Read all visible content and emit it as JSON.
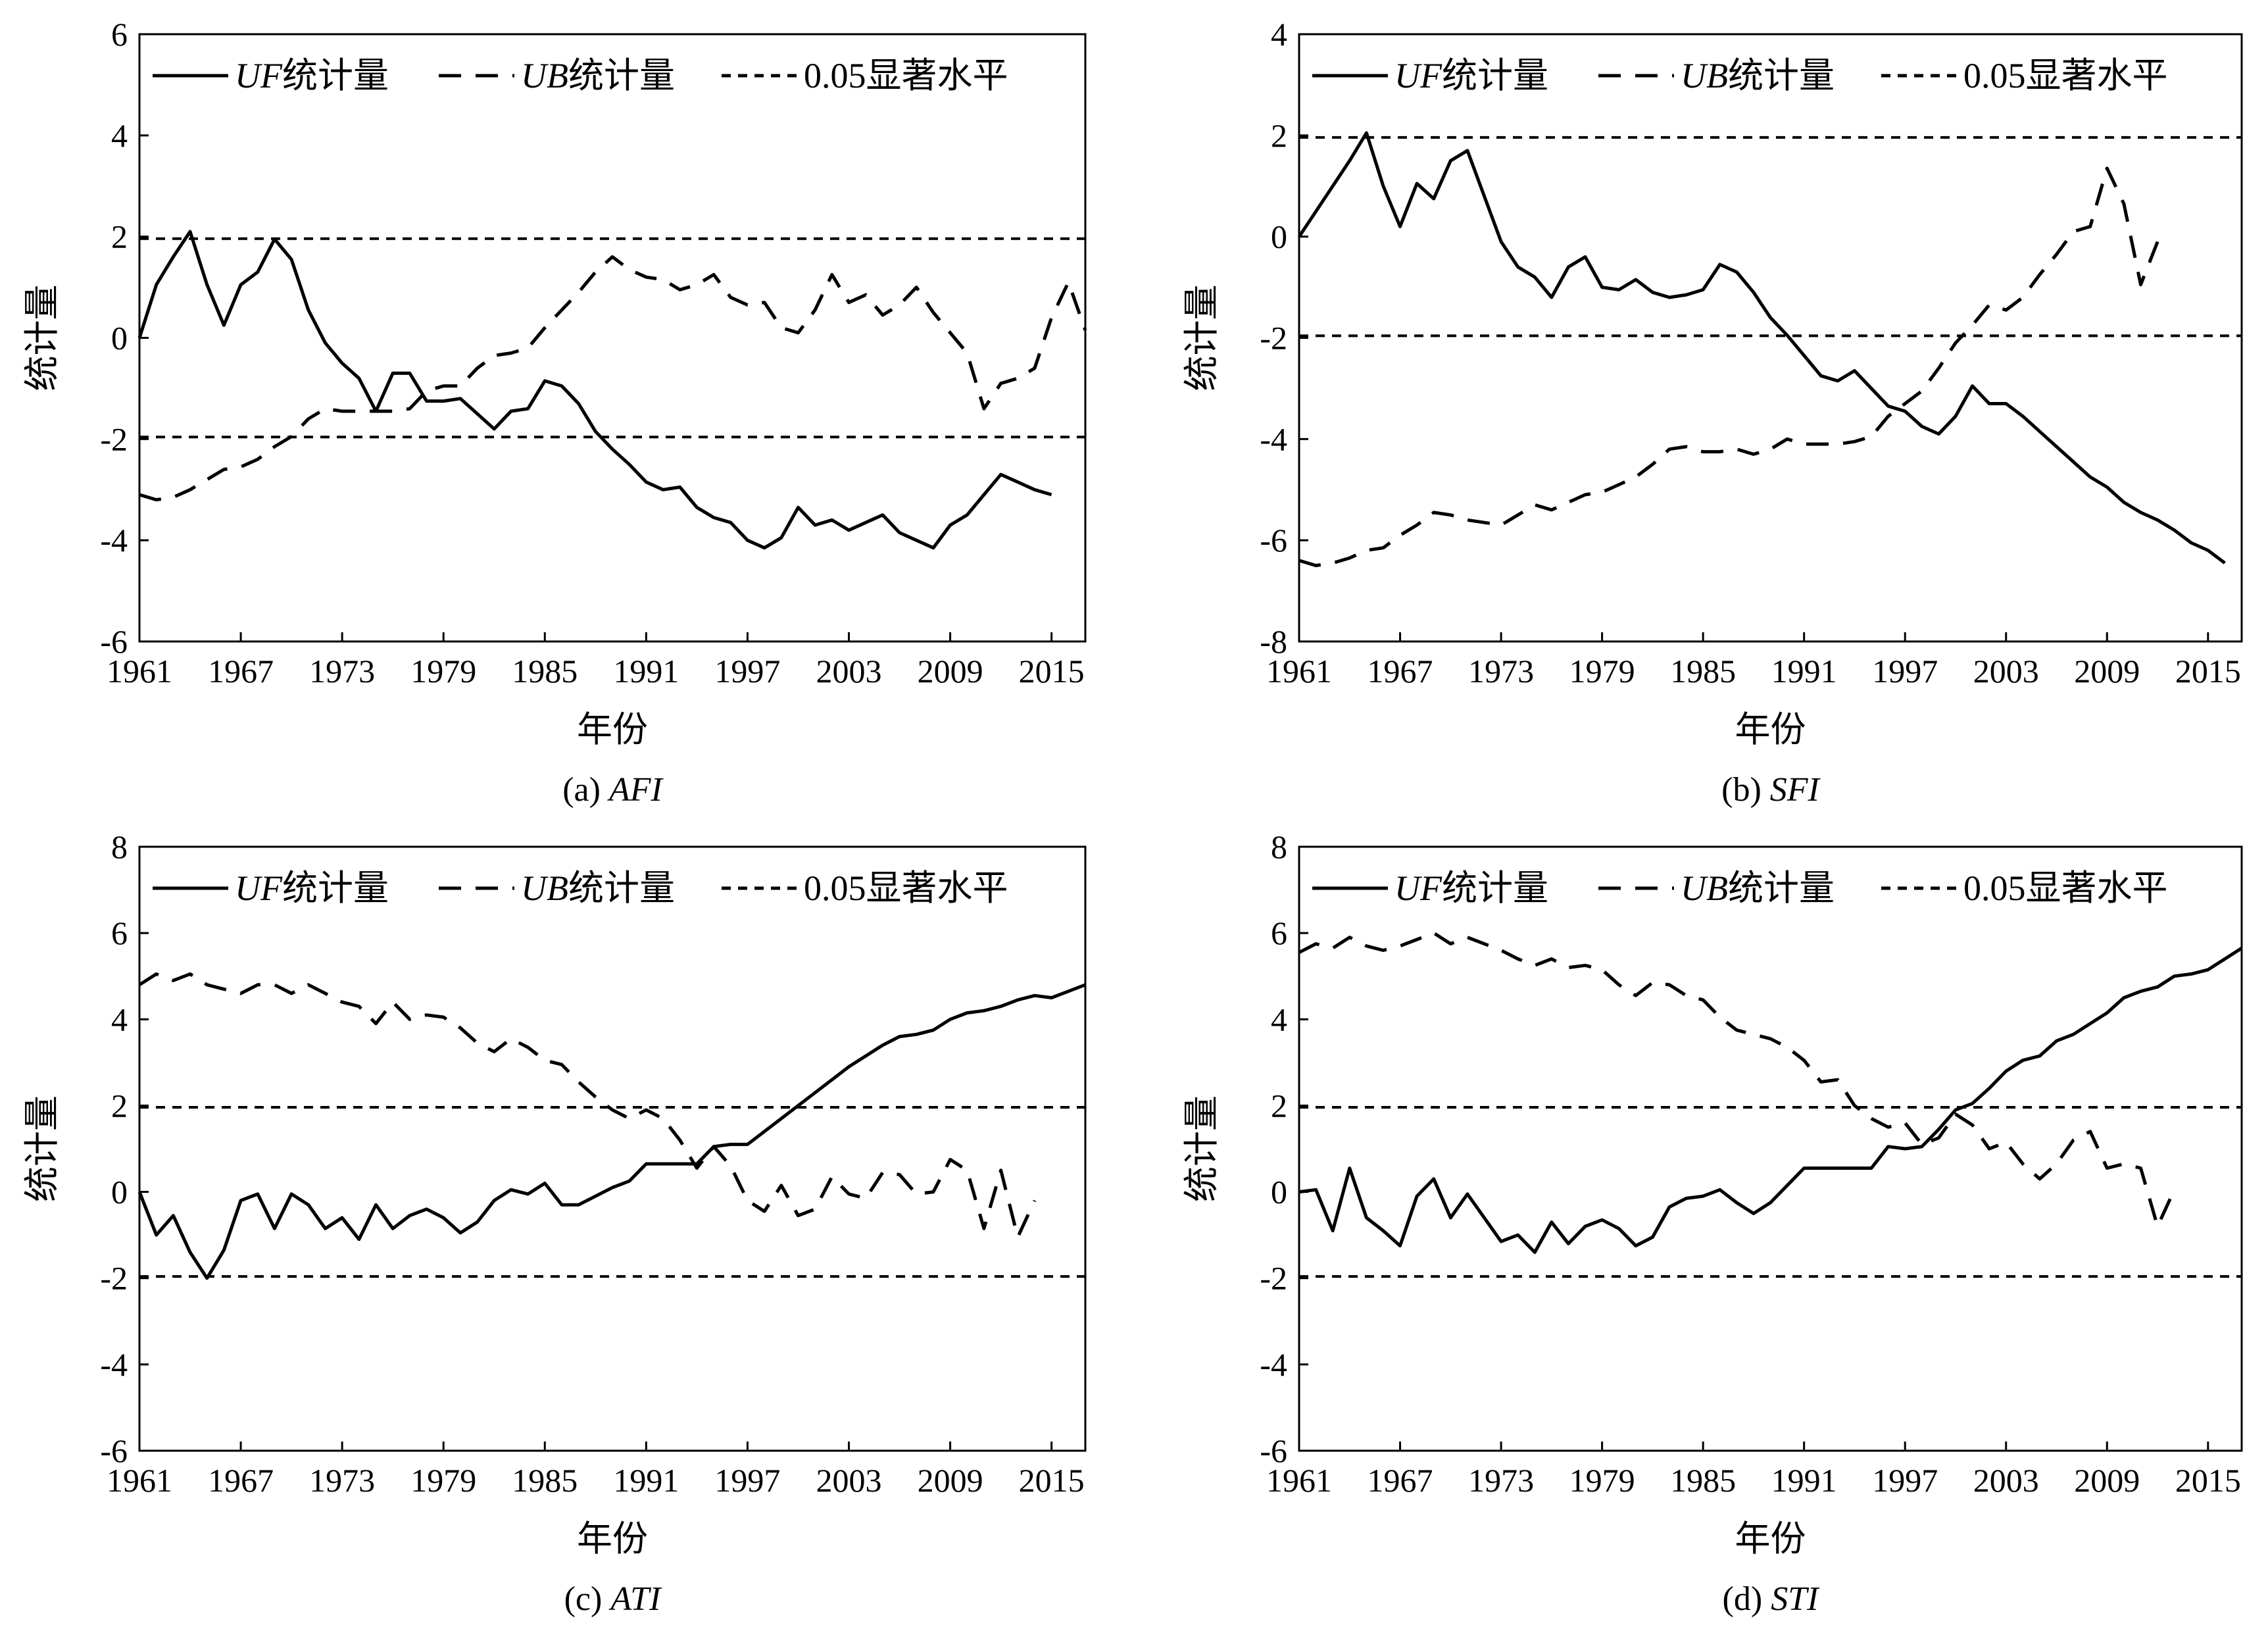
{
  "legend": {
    "uf_prefix": "UF",
    "uf_suffix": "统计量",
    "ub_prefix": "UB",
    "ub_suffix": "统计量",
    "sig_label": "0.05显著水平"
  },
  "chart_data": [
    {
      "panel": "a",
      "type": "line",
      "caption_prefix": "(a) ",
      "caption_index": "AFI",
      "xlabel": "年份",
      "ylabel": "统计量",
      "xlim": [
        1961,
        2017
      ],
      "ylim": [
        -6,
        6
      ],
      "xticks": [
        1961,
        1967,
        1973,
        1979,
        1985,
        1991,
        1997,
        2003,
        2009,
        2015
      ],
      "yticks": [
        -6,
        -4,
        -2,
        0,
        2,
        4,
        6
      ],
      "significance_levels": [
        1.96,
        -1.96
      ],
      "x_start": 1961,
      "series": [
        {
          "name": "UF统计量",
          "style": "solid",
          "values": [
            0,
            1.05,
            1.6,
            2.1,
            1.05,
            0.25,
            1.05,
            1.3,
            1.95,
            1.55,
            0.55,
            -0.1,
            -0.5,
            -0.8,
            -1.45,
            -0.7,
            -0.7,
            -1.25,
            -1.25,
            -1.2,
            -1.5,
            -1.8,
            -1.45,
            -1.4,
            -0.85,
            -0.95,
            -1.3,
            -1.85,
            -2.2,
            -2.5,
            -2.85,
            -3.0,
            -2.95,
            -3.35,
            -3.55,
            -3.65,
            -4.0,
            -4.15,
            -3.95,
            -3.35,
            -3.7,
            -3.6,
            -3.8,
            -3.65,
            -3.5,
            -3.85,
            -4.0,
            -4.15,
            -3.7,
            -3.5,
            -3.1,
            -2.7,
            -2.85,
            -3.0,
            -3.1
          ]
        },
        {
          "name": "UB统计量",
          "style": "dashed",
          "values": [
            -3.1,
            -3.2,
            -3.15,
            -3.0,
            -2.8,
            -2.6,
            -2.55,
            -2.4,
            -2.15,
            -1.95,
            -1.6,
            -1.4,
            -1.45,
            -1.45,
            -1.45,
            -1.45,
            -1.4,
            -1.05,
            -0.95,
            -0.95,
            -0.6,
            -0.35,
            -0.3,
            -0.2,
            0.2,
            0.55,
            0.9,
            1.3,
            1.6,
            1.35,
            1.2,
            1.15,
            0.95,
            1.05,
            1.25,
            0.8,
            0.65,
            0.7,
            0.2,
            0.1,
            0.55,
            1.25,
            0.7,
            0.85,
            0.45,
            0.65,
            1.0,
            0.5,
            0.1,
            -0.3,
            -1.4,
            -0.9,
            -0.8,
            -0.6,
            0.4,
            1.1,
            0.15
          ]
        }
      ]
    },
    {
      "panel": "b",
      "type": "line",
      "caption_prefix": "(b) ",
      "caption_index": "SFI",
      "xlabel": "年份",
      "ylabel": "统计量",
      "xlim": [
        1961,
        2017
      ],
      "ylim": [
        -8,
        4
      ],
      "xticks": [
        1961,
        1967,
        1973,
        1979,
        1985,
        1991,
        1997,
        2003,
        2009,
        2015
      ],
      "yticks": [
        -8,
        -6,
        -4,
        -2,
        0,
        2,
        4
      ],
      "significance_levels": [
        1.96,
        -1.96
      ],
      "x_start": 1961,
      "series": [
        {
          "name": "UF统计量",
          "style": "solid",
          "values": [
            0,
            0.5,
            1.0,
            1.5,
            2.05,
            1.0,
            0.2,
            1.05,
            0.75,
            1.5,
            1.7,
            0.8,
            -0.1,
            -0.6,
            -0.8,
            -1.2,
            -0.6,
            -0.4,
            -1.0,
            -1.05,
            -0.85,
            -1.1,
            -1.2,
            -1.15,
            -1.05,
            -0.55,
            -0.7,
            -1.1,
            -1.6,
            -1.95,
            -2.35,
            -2.75,
            -2.85,
            -2.65,
            -3.0,
            -3.35,
            -3.45,
            -3.75,
            -3.9,
            -3.55,
            -2.95,
            -3.3,
            -3.3,
            -3.55,
            -3.85,
            -4.15,
            -4.45,
            -4.75,
            -4.95,
            -5.25,
            -5.45,
            -5.6,
            -5.8,
            -6.05,
            -6.2,
            -6.45
          ]
        },
        {
          "name": "UB统计量",
          "style": "dashed",
          "values": [
            -6.4,
            -6.5,
            -6.45,
            -6.35,
            -6.2,
            -6.15,
            -5.9,
            -5.7,
            -5.45,
            -5.5,
            -5.6,
            -5.65,
            -5.7,
            -5.5,
            -5.3,
            -5.4,
            -5.25,
            -5.1,
            -5.05,
            -4.9,
            -4.75,
            -4.5,
            -4.2,
            -4.15,
            -4.25,
            -4.25,
            -4.2,
            -4.3,
            -4.2,
            -4.0,
            -4.1,
            -4.1,
            -4.1,
            -4.05,
            -3.95,
            -3.55,
            -3.3,
            -3.05,
            -2.6,
            -2.1,
            -1.75,
            -1.35,
            -1.45,
            -1.2,
            -0.75,
            -0.35,
            0.1,
            0.2,
            1.35,
            0.65,
            -0.95,
            -0.1
          ]
        }
      ]
    },
    {
      "panel": "c",
      "type": "line",
      "caption_prefix": "(c) ",
      "caption_index": "ATI",
      "xlabel": "年份",
      "ylabel": "统计量",
      "xlim": [
        1961,
        2017
      ],
      "ylim": [
        -6,
        8
      ],
      "xticks": [
        1961,
        1967,
        1973,
        1979,
        1985,
        1991,
        1997,
        2003,
        2009,
        2015
      ],
      "yticks": [
        -6,
        -4,
        -2,
        0,
        2,
        4,
        6,
        8
      ],
      "significance_levels": [
        1.96,
        -1.96
      ],
      "x_start": 1961,
      "series": [
        {
          "name": "UF统计量",
          "style": "solid",
          "values": [
            0,
            -1.0,
            -0.55,
            -1.4,
            -2.0,
            -1.35,
            -0.2,
            -0.05,
            -0.85,
            -0.05,
            -0.3,
            -0.85,
            -0.6,
            -1.1,
            -0.3,
            -0.85,
            -0.55,
            -0.4,
            -0.6,
            -0.95,
            -0.7,
            -0.2,
            0.05,
            -0.05,
            0.2,
            -0.3,
            -0.3,
            -0.1,
            0.1,
            0.25,
            0.65,
            0.65,
            0.65,
            0.65,
            1.05,
            1.1,
            1.1,
            1.4,
            1.7,
            2.0,
            2.3,
            2.6,
            2.9,
            3.15,
            3.4,
            3.6,
            3.65,
            3.75,
            4.0,
            4.15,
            4.2,
            4.3,
            4.45,
            4.55,
            4.5,
            4.65,
            4.8
          ]
        },
        {
          "name": "UB统计量",
          "style": "dashed",
          "values": [
            4.8,
            5.05,
            4.9,
            5.05,
            4.8,
            4.7,
            4.6,
            4.8,
            4.8,
            4.6,
            4.8,
            4.6,
            4.4,
            4.3,
            3.9,
            4.4,
            4.0,
            4.1,
            4.05,
            3.8,
            3.45,
            3.25,
            3.55,
            3.35,
            3.05,
            2.95,
            2.55,
            2.2,
            1.9,
            1.7,
            1.9,
            1.7,
            1.2,
            0.55,
            1.05,
            0.6,
            -0.2,
            -0.45,
            0.15,
            -0.55,
            -0.4,
            0.35,
            -0.05,
            -0.15,
            0.45,
            0.4,
            -0.05,
            0.0,
            0.75,
            0.5,
            -0.85,
            0.5,
            -1.05,
            -0.2
          ]
        }
      ]
    },
    {
      "panel": "d",
      "type": "line",
      "caption_prefix": "(d)  ",
      "caption_index": "STI",
      "xlabel": "年份",
      "ylabel": "统计量",
      "xlim": [
        1961,
        2017
      ],
      "ylim": [
        -6,
        8
      ],
      "xticks": [
        1961,
        1967,
        1973,
        1979,
        1985,
        1991,
        1997,
        2003,
        2009,
        2015
      ],
      "yticks": [
        -6,
        -4,
        -2,
        0,
        2,
        4,
        6,
        8
      ],
      "significance_levels": [
        1.96,
        -1.96
      ],
      "x_start": 1961,
      "series": [
        {
          "name": "UF统计量",
          "style": "solid",
          "values": [
            0,
            0.05,
            -0.9,
            0.55,
            -0.6,
            -0.9,
            -1.25,
            -0.1,
            0.3,
            -0.6,
            -0.05,
            -0.6,
            -1.15,
            -1.0,
            -1.4,
            -0.7,
            -1.2,
            -0.8,
            -0.65,
            -0.85,
            -1.25,
            -1.05,
            -0.35,
            -0.15,
            -0.1,
            0.05,
            -0.25,
            -0.5,
            -0.25,
            0.15,
            0.55,
            0.55,
            0.55,
            0.55,
            0.55,
            1.05,
            1.0,
            1.05,
            1.45,
            1.9,
            2.05,
            2.4,
            2.8,
            3.05,
            3.15,
            3.5,
            3.65,
            3.9,
            4.15,
            4.5,
            4.65,
            4.75,
            5.0,
            5.05,
            5.15,
            5.4,
            5.65
          ]
        },
        {
          "name": "UB统计量",
          "style": "dashed",
          "values": [
            5.55,
            5.75,
            5.65,
            5.9,
            5.7,
            5.6,
            5.7,
            5.85,
            6.0,
            5.75,
            5.9,
            5.75,
            5.6,
            5.4,
            5.25,
            5.4,
            5.2,
            5.25,
            5.15,
            4.8,
            4.55,
            4.85,
            4.8,
            4.55,
            4.45,
            4.05,
            3.75,
            3.65,
            3.55,
            3.35,
            3.05,
            2.55,
            2.6,
            2.0,
            1.7,
            1.5,
            1.6,
            1.1,
            1.25,
            1.8,
            1.55,
            1.0,
            1.15,
            0.65,
            0.3,
            0.65,
            1.2,
            1.4,
            0.55,
            0.65,
            0.55,
            -0.8,
            0.05
          ]
        }
      ]
    }
  ]
}
